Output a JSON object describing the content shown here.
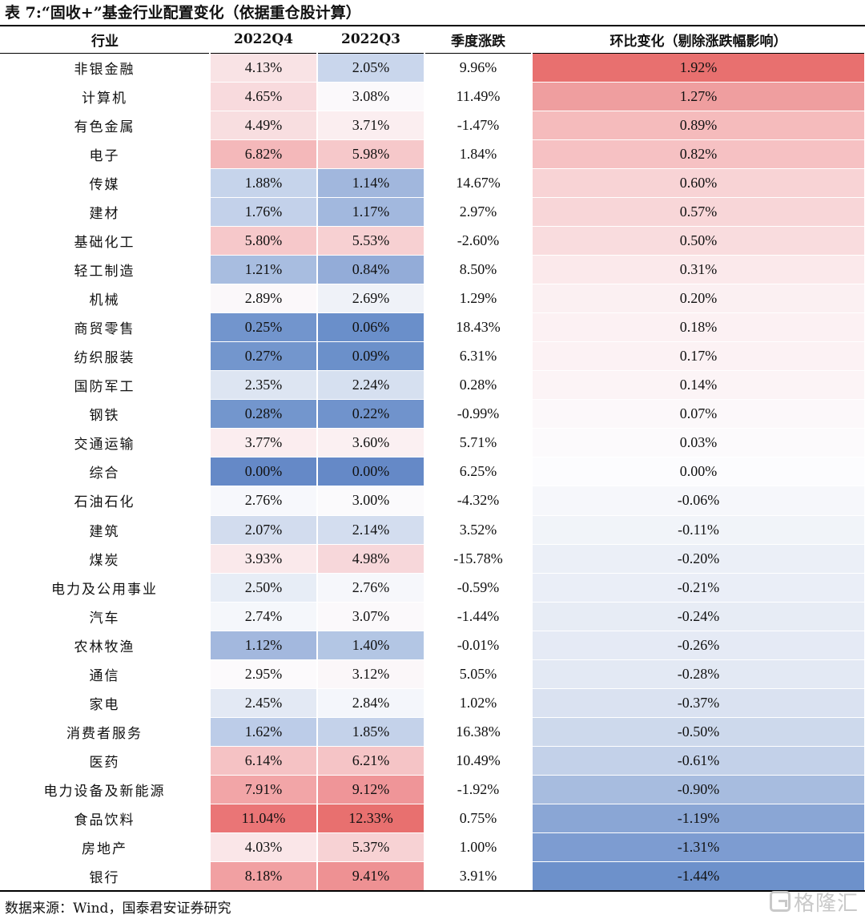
{
  "title": "表 7:“固收+”基金行业配置变化（依据重仓股计算）",
  "columns": [
    "行业",
    "2022Q4",
    "2022Q3",
    "季度涨跌",
    "环比变化（剔除涨跌幅影响）"
  ],
  "rows": [
    {
      "name": "非银金融",
      "q4": "4.13%",
      "q3": "2.05%",
      "chg": "9.96%",
      "adj": "1.92%",
      "q4c": "#f9e3e5",
      "q3c": "#c9d6ec",
      "adjc": "#e8706f"
    },
    {
      "name": "计算机",
      "q4": "4.65%",
      "q3": "3.08%",
      "chg": "11.49%",
      "adj": "1.27%",
      "q4c": "#f8dadd",
      "q3c": "#fbf9fb",
      "adjc": "#ef9e9f"
    },
    {
      "name": "有色金属",
      "q4": "4.49%",
      "q3": "3.71%",
      "chg": "-1.47%",
      "adj": "0.89%",
      "q4c": "#f8dee0",
      "q3c": "#fbeef0",
      "adjc": "#f5bbbc"
    },
    {
      "name": "电子",
      "q4": "6.82%",
      "q3": "5.98%",
      "chg": "1.84%",
      "adj": "0.82%",
      "q4c": "#f4b8ba",
      "q3c": "#f6c8ca",
      "adjc": "#f6c1c3"
    },
    {
      "name": "传媒",
      "q4": "1.88%",
      "q3": "1.14%",
      "chg": "14.67%",
      "adj": "0.60%",
      "q4c": "#c6d4eb",
      "q3c": "#a1b7dd",
      "adjc": "#f8d3d5"
    },
    {
      "name": "建材",
      "q4": "1.76%",
      "q3": "1.17%",
      "chg": "2.97%",
      "adj": "0.57%",
      "q4c": "#c3d1ea",
      "q3c": "#a2b8de",
      "adjc": "#f8d6d8"
    },
    {
      "name": "基础化工",
      "q4": "5.80%",
      "q3": "5.53%",
      "chg": "-2.60%",
      "adj": "0.50%",
      "q4c": "#f6c8ca",
      "q3c": "#f7d0d2",
      "adjc": "#f9dcde"
    },
    {
      "name": "轻工制造",
      "q4": "1.21%",
      "q3": "0.84%",
      "chg": "8.50%",
      "adj": "0.31%",
      "q4c": "#a8bde0",
      "q3c": "#93acd8",
      "adjc": "#fbe9eb"
    },
    {
      "name": "机械",
      "q4": "2.89%",
      "q3": "2.69%",
      "chg": "1.29%",
      "adj": "0.20%",
      "q4c": "#fbf8fa",
      "q3c": "#eff2f8",
      "adjc": "#fbf0f2"
    },
    {
      "name": "商贸零售",
      "q4": "0.25%",
      "q3": "0.06%",
      "chg": "18.43%",
      "adj": "0.18%",
      "q4c": "#7295cd",
      "q3c": "#6a8fca",
      "adjc": "#fcf1f3"
    },
    {
      "name": "纺织服装",
      "q4": "0.27%",
      "q3": "0.09%",
      "chg": "6.31%",
      "adj": "0.17%",
      "q4c": "#7396cd",
      "q3c": "#6b90ca",
      "adjc": "#fcf2f4"
    },
    {
      "name": "国防军工",
      "q4": "2.35%",
      "q3": "2.24%",
      "chg": "0.28%",
      "adj": "0.14%",
      "q4c": "#dde5f2",
      "q3c": "#d6e0f0",
      "adjc": "#fcf4f6"
    },
    {
      "name": "钢铁",
      "q4": "0.28%",
      "q3": "0.22%",
      "chg": "-0.99%",
      "adj": "0.07%",
      "q4c": "#7396cd",
      "q3c": "#7093cc",
      "adjc": "#fcf8fa"
    },
    {
      "name": "交通运输",
      "q4": "3.77%",
      "q3": "3.60%",
      "chg": "5.71%",
      "adj": "0.03%",
      "q4c": "#fbedef",
      "q3c": "#fbf0f2",
      "adjc": "#fcfafc"
    },
    {
      "name": "综合",
      "q4": "0.00%",
      "q3": "0.00%",
      "chg": "6.25%",
      "adj": "0.00%",
      "q4c": "#6589c7",
      "q3c": "#6589c7",
      "adjc": "#fcfcfe"
    },
    {
      "name": "石油石化",
      "q4": "2.76%",
      "q3": "3.00%",
      "chg": "-4.32%",
      "adj": "-0.06%",
      "q4c": "#f7f8fc",
      "q3c": "#fbfafc",
      "adjc": "#f6f7fb"
    },
    {
      "name": "建筑",
      "q4": "2.07%",
      "q3": "2.14%",
      "chg": "3.52%",
      "adj": "-0.11%",
      "q4c": "#d2dcee",
      "q3c": "#d3ddef",
      "adjc": "#f1f4f9"
    },
    {
      "name": "煤炭",
      "q4": "3.93%",
      "q3": "4.98%",
      "chg": "-15.78%",
      "adj": "-0.20%",
      "q4c": "#fae9eb",
      "q3c": "#f7d7da",
      "adjc": "#ebeff7"
    },
    {
      "name": "电力及公用事业",
      "q4": "2.50%",
      "q3": "2.76%",
      "chg": "-0.59%",
      "adj": "-0.21%",
      "q4c": "#e7edf6",
      "q3c": "#f6f7fb",
      "adjc": "#eaeef7"
    },
    {
      "name": "汽车",
      "q4": "2.74%",
      "q3": "3.07%",
      "chg": "-1.44%",
      "adj": "-0.24%",
      "q4c": "#f5f7fb",
      "q3c": "#fbf9fb",
      "adjc": "#e7ecf5"
    },
    {
      "name": "农林牧渔",
      "q4": "1.12%",
      "q3": "1.40%",
      "chg": "-0.01%",
      "adj": "-0.26%",
      "q4c": "#a3b8de",
      "q3c": "#b3c6e4",
      "adjc": "#e5eaf5"
    },
    {
      "name": "通信",
      "q4": "2.95%",
      "q3": "3.12%",
      "chg": "5.05%",
      "adj": "-0.28%",
      "q4c": "#fcfafc",
      "q3c": "#fbf7f9",
      "adjc": "#e3e9f4"
    },
    {
      "name": "家电",
      "q4": "2.45%",
      "q3": "2.84%",
      "chg": "1.02%",
      "adj": "-0.37%",
      "q4c": "#e3e9f4",
      "q3c": "#f4f6fb",
      "adjc": "#dae2f1"
    },
    {
      "name": "消费者服务",
      "q4": "1.62%",
      "q3": "1.85%",
      "chg": "16.38%",
      "adj": "-0.50%",
      "q4c": "#bccce8",
      "q3c": "#c4d2ea",
      "adjc": "#cdd9ec"
    },
    {
      "name": "医药",
      "q4": "6.14%",
      "q3": "6.21%",
      "chg": "10.49%",
      "adj": "-0.61%",
      "q4c": "#f5c2c4",
      "q3c": "#f5c4c6",
      "adjc": "#c3d1e9"
    },
    {
      "name": "电力设备及新能源",
      "q4": "7.91%",
      "q3": "9.12%",
      "chg": "-1.92%",
      "adj": "-0.90%",
      "q4c": "#f2a5a7",
      "q3c": "#ef9598",
      "adjc": "#a7bcdf"
    },
    {
      "name": "食品饮料",
      "q4": "11.04%",
      "q3": "12.33%",
      "chg": "0.75%",
      "adj": "-1.19%",
      "q4c": "#ea7576",
      "q3c": "#e8706f",
      "adjc": "#8aa6d5"
    },
    {
      "name": "房地产",
      "q4": "4.03%",
      "q3": "5.37%",
      "chg": "1.00%",
      "adj": "-1.31%",
      "q4c": "#fae6e8",
      "q3c": "#f7d2d4",
      "adjc": "#7d9cd1"
    },
    {
      "name": "银行",
      "q4": "8.18%",
      "q3": "9.41%",
      "chg": "3.91%",
      "adj": "-1.44%",
      "q4c": "#f1a0a2",
      "q3c": "#ee9193",
      "adjc": "#6d91cb"
    }
  ],
  "source": "数据来源：Wind，国泰君安证券研究",
  "watermark": "格隆汇"
}
